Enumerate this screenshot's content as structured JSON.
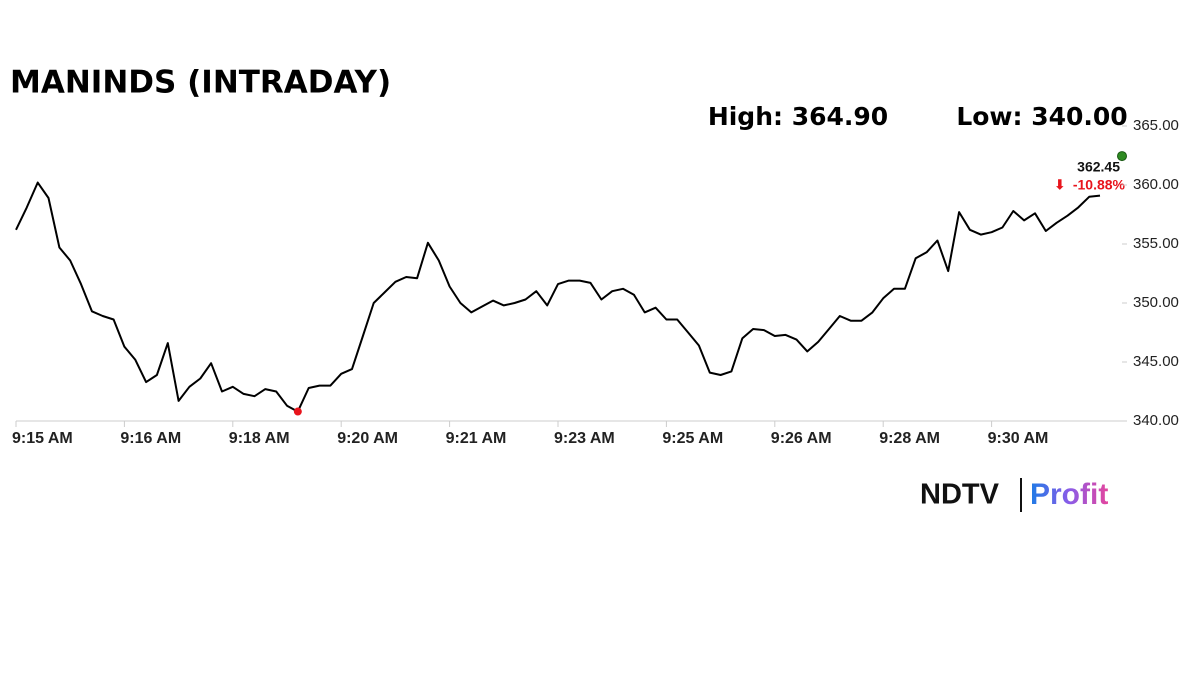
{
  "chart_data": {
    "type": "line",
    "title": "MANINDS (INTRADAY)",
    "high_label": "High: 364.90",
    "low_label": "Low: 340.00",
    "color": "#000000",
    "low_marker_color": "#e8141c",
    "last_marker_color": "#2e8b22",
    "last_price": 362.45,
    "change_label": "-10.88%",
    "brand": [
      "NDTV",
      "Profit"
    ],
    "categories": [
      "9:15 AM",
      null,
      null,
      null,
      null,
      null,
      null,
      null,
      null,
      null,
      "9:16 AM",
      null,
      null,
      null,
      null,
      null,
      null,
      null,
      null,
      null,
      "9:18 AM",
      null,
      null,
      null,
      null,
      null,
      null,
      null,
      null,
      null,
      "9:20 AM",
      null,
      null,
      null,
      null,
      null,
      null,
      null,
      null,
      null,
      "9:21 AM",
      null,
      null,
      null,
      null,
      null,
      null,
      null,
      null,
      null,
      "9:23 AM",
      null,
      null,
      null,
      null,
      null,
      null,
      null,
      null,
      null,
      "9:25 AM",
      null,
      null,
      null,
      null,
      null,
      null,
      null,
      null,
      null,
      "9:26 AM",
      null,
      null,
      null,
      null,
      null,
      null,
      null,
      null,
      null,
      "9:28 AM",
      null,
      null,
      null,
      null,
      null,
      null,
      null,
      null,
      null,
      "9:30 AM",
      null,
      null,
      null,
      null,
      null,
      null,
      null,
      null,
      null,
      null
    ],
    "values": [
      356.2,
      358.1,
      360.2,
      358.9,
      354.7,
      353.6,
      351.6,
      349.3,
      348.9,
      348.6,
      346.3,
      345.2,
      343.3,
      343.9,
      346.6,
      341.7,
      342.9,
      343.6,
      344.9,
      342.5,
      342.9,
      342.3,
      342.1,
      342.7,
      342.5,
      341.3,
      340.8,
      342.8,
      343.0,
      343.0,
      344.0,
      344.4,
      347.2,
      350.0,
      350.9,
      351.8,
      352.2,
      352.1,
      355.1,
      353.6,
      351.4,
      350.0,
      349.2,
      349.7,
      350.2,
      349.8,
      350.0,
      350.3,
      351.0,
      349.8,
      351.6,
      351.9,
      351.9,
      351.7,
      350.3,
      351.0,
      351.2,
      350.7,
      349.2,
      349.6,
      348.6,
      348.6,
      347.5,
      346.4,
      344.1,
      343.9,
      344.2,
      347.0,
      347.8,
      347.7,
      347.2,
      347.3,
      346.9,
      345.9,
      346.7,
      347.8,
      348.9,
      348.5,
      348.5,
      349.2,
      350.4,
      351.2,
      351.2,
      353.8,
      354.3,
      355.3,
      352.7,
      357.7,
      356.2,
      355.8,
      356.0,
      356.4,
      357.8,
      357.0,
      357.6,
      356.1,
      356.8,
      357.4,
      358.1,
      359.0,
      359.1
    ],
    "ylim": [
      340,
      365
    ],
    "yticks": [
      {
        "value": 340,
        "label": "340.00"
      },
      {
        "value": 345,
        "label": "345.00"
      },
      {
        "value": 350,
        "label": "350.00"
      },
      {
        "value": 355,
        "label": "355.00"
      },
      {
        "value": 360,
        "label": "360.00"
      },
      {
        "value": 365,
        "label": "365.00"
      }
    ]
  }
}
